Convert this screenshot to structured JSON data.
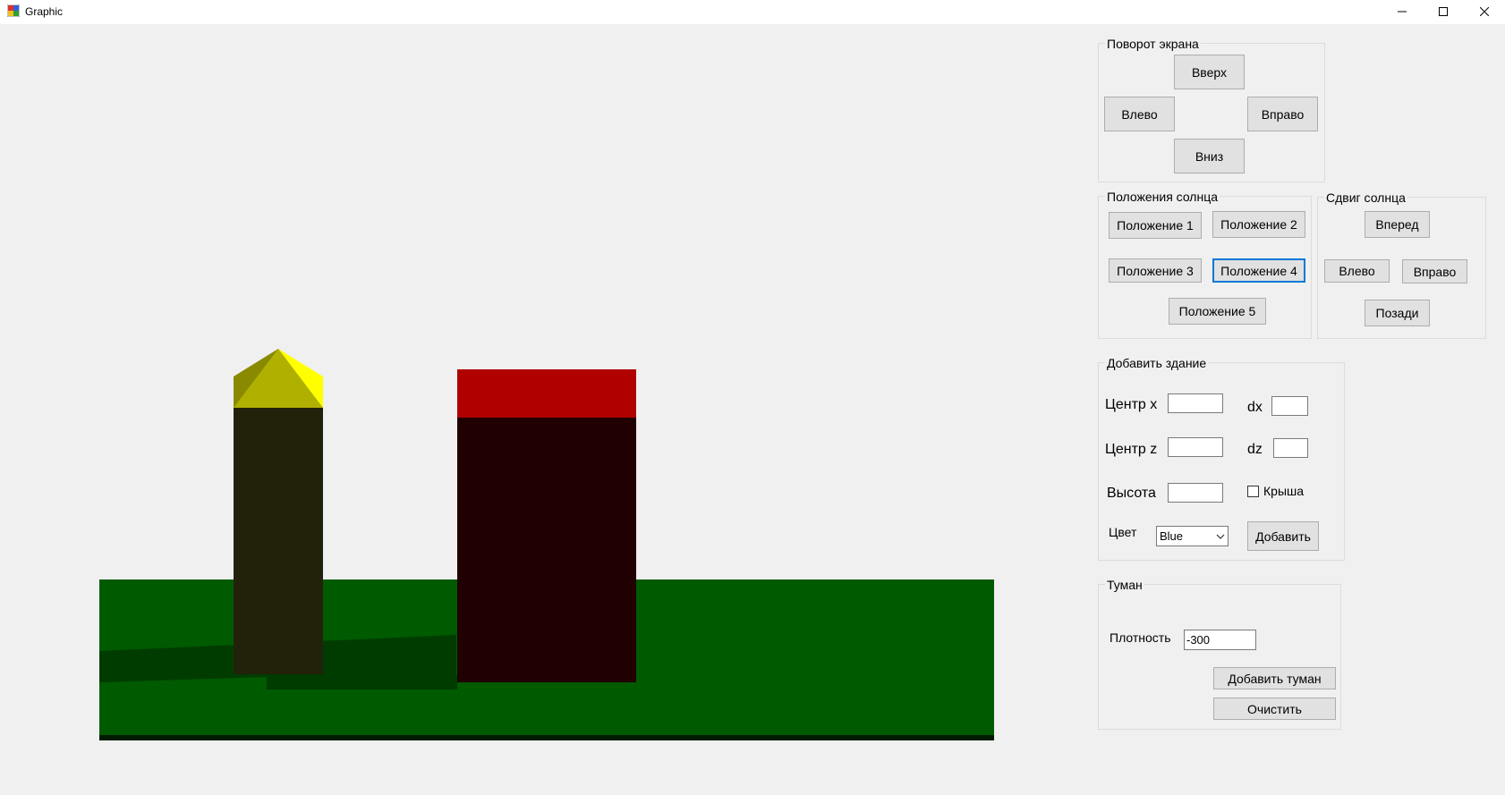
{
  "window": {
    "title": "Graphic"
  },
  "rotation": {
    "title": "Поворот экрана",
    "up": "Вверх",
    "left": "Влево",
    "right": "Вправо",
    "down": "Вниз"
  },
  "sun_positions": {
    "title": "Положения солнца",
    "buttons": [
      "Положение 1",
      "Положение 2",
      "Положение 3",
      "Положение 4",
      "Положение 5"
    ],
    "focused_index": 3
  },
  "sun_shift": {
    "title": "Сдвиг солнца",
    "forward": "Вперед",
    "left": "Влево",
    "right": "Вправо",
    "back": "Позади"
  },
  "add_building": {
    "title": "Добавить здание",
    "center_x_label": "Центр x",
    "center_x_value": "",
    "dx_label": "dx",
    "dx_value": "",
    "center_z_label": "Центр z",
    "center_z_value": "",
    "dz_label": "dz",
    "dz_value": "",
    "height_label": "Высота",
    "height_value": "",
    "roof_label": "Крыша",
    "roof_checked": false,
    "color_label": "Цвет",
    "color_value": "Blue",
    "add_button": "Добавить"
  },
  "fog": {
    "title": "Туман",
    "density_label": "Плотность",
    "density_value": "-300",
    "add_button": "Добавить туман",
    "clear_button": "Очистить"
  },
  "scene_colors": {
    "ground": "#005a00",
    "ground_shadow": "#003c00",
    "tower_body": "#22220a",
    "tower_roof": "#ffff00",
    "tower_roof_shadow": "#8a8a00",
    "building_body": "#200000",
    "building_top": "#b00000"
  }
}
